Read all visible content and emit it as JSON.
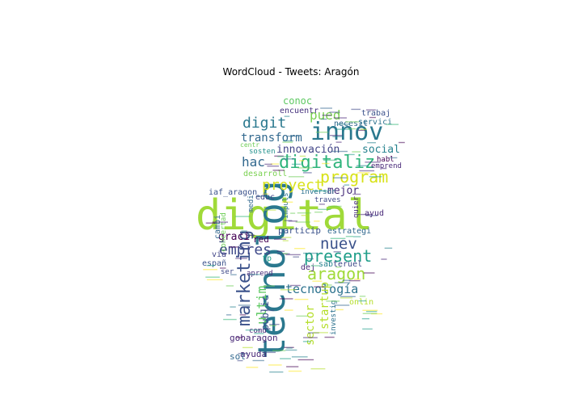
{
  "chart_data": {
    "type": "wordcloud",
    "title": "WordCloud - Tweets: Aragón",
    "palette": [
      "#440154",
      "#482878",
      "#3e4989",
      "#31688e",
      "#26828e",
      "#1f9e89",
      "#35b779",
      "#6ece58",
      "#b5de2b",
      "#fde725"
    ],
    "words": [
      {
        "text": "digital",
        "color": "#a0da39"
      },
      {
        "text": "tecnolog",
        "color": "#2a788e"
      },
      {
        "text": "innov",
        "color": "#2a788e"
      },
      {
        "text": "digitaliz",
        "color": "#2fb47c"
      },
      {
        "text": "marketing",
        "color": "#3b528b"
      },
      {
        "text": "program",
        "color": "#d8e219"
      },
      {
        "text": "aragon",
        "color": "#a0da39"
      },
      {
        "text": "present",
        "color": "#1f9e89"
      },
      {
        "text": "nuev",
        "color": "#3b528b"
      },
      {
        "text": "empres",
        "color": "#3e4989"
      },
      {
        "text": "proyect",
        "color": "#d8e219"
      },
      {
        "text": "digit",
        "color": "#2a788e"
      },
      {
        "text": "pued",
        "color": "#7ad151"
      },
      {
        "text": "hac",
        "color": "#31688e"
      },
      {
        "text": "ultim",
        "color": "#5ec962"
      },
      {
        "text": "tecnología",
        "color": "#2c728e"
      },
      {
        "text": "sector",
        "color": "#b5de2b"
      },
      {
        "text": "startup",
        "color": "#b5de2b"
      },
      {
        "text": "transform",
        "color": "#31688e"
      },
      {
        "text": "innovación",
        "color": "#414487"
      },
      {
        "text": "social",
        "color": "#26828e"
      },
      {
        "text": "mejor",
        "color": "#472d7b"
      },
      {
        "text": "graci",
        "color": "#440154"
      },
      {
        "text": "conoc",
        "color": "#5ec962"
      },
      {
        "text": "public",
        "color": "#3b528b"
      },
      {
        "text": "gobaragon",
        "color": "#482878"
      },
      {
        "text": "encuentr",
        "color": "#46327e"
      },
      {
        "text": "necesit",
        "color": "#31688e"
      },
      {
        "text": "trabaj",
        "color": "#3b528b"
      },
      {
        "text": "servici",
        "color": "#2c728e"
      },
      {
        "text": "habl",
        "color": "#440154"
      },
      {
        "text": "emprend",
        "color": "#482878"
      },
      {
        "text": "iaf_aragon",
        "color": "#3b528b"
      },
      {
        "text": "desarroll",
        "color": "#7ad151"
      },
      {
        "text": "sosten",
        "color": "#21918c"
      },
      {
        "text": "centr",
        "color": "#6ece58"
      },
      {
        "text": "educ",
        "color": "#414487"
      },
      {
        "text": "inversor",
        "color": "#2c728e"
      },
      {
        "text": "traves",
        "color": "#3e4989"
      },
      {
        "text": "ayud",
        "color": "#482878"
      },
      {
        "text": "quier",
        "color": "#472d7b"
      },
      {
        "text": "particip",
        "color": "#3b528b"
      },
      {
        "text": "estrategi",
        "color": "#31688e"
      },
      {
        "text": "red",
        "color": "#440154"
      },
      {
        "text": "dej",
        "color": "#482878"
      },
      {
        "text": "españ",
        "color": "#3b528b"
      },
      {
        "text": "via",
        "color": "#414487"
      },
      {
        "text": "sab",
        "color": "#26828e"
      },
      {
        "text": "teruel",
        "color": "#3e4989"
      },
      {
        "text": "onlin",
        "color": "#b5de2b"
      },
      {
        "text": "investig",
        "color": "#2c728e"
      },
      {
        "text": "ayuda",
        "color": "#482878"
      },
      {
        "text": "sol",
        "color": "#31688e"
      },
      {
        "text": "concertad",
        "color": "#6ece58"
      },
      {
        "text": "cambi",
        "color": "#31688e"
      },
      {
        "text": "impuls",
        "color": "#2c728e"
      },
      {
        "text": "aprend",
        "color": "#472d7b"
      },
      {
        "text": "comu",
        "color": "#482878"
      },
      {
        "text": "fp",
        "color": "#1f9e89"
      },
      {
        "text": "ser",
        "color": "#3e4989"
      },
      {
        "text": "medi",
        "color": "#31688e"
      }
    ]
  }
}
